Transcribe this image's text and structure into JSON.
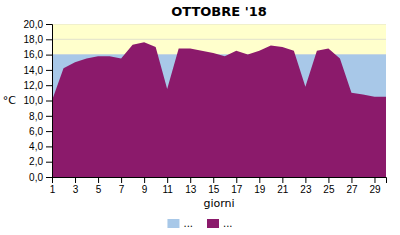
{
  "chart_data": {
    "type": "area",
    "title": "OTTOBRE '18",
    "x_label": "giorni",
    "y_label": "°C",
    "x": [
      1,
      2,
      3,
      4,
      5,
      6,
      7,
      8,
      9,
      10,
      11,
      12,
      13,
      14,
      15,
      16,
      17,
      18,
      19,
      20,
      21,
      22,
      23,
      24,
      25,
      26,
      27,
      28,
      29,
      30
    ],
    "series": [
      {
        "name": "...",
        "color": "#A8C8E8",
        "values": [
          16.0,
          16.0,
          16.0,
          16.0,
          16.0,
          16.0,
          16.0,
          16.0,
          16.0,
          16.0,
          16.0,
          16.0,
          16.0,
          16.0,
          16.0,
          16.0,
          16.0,
          16.0,
          16.0,
          16.0,
          16.0,
          16.0,
          16.0,
          16.0,
          16.0,
          16.0,
          16.0,
          16.0,
          16.0,
          16.0
        ]
      },
      {
        "name": "...",
        "color": "#8B1A6B",
        "values": [
          10.0,
          14.2,
          15.0,
          15.5,
          15.8,
          15.8,
          15.5,
          17.3,
          17.6,
          17.0,
          11.5,
          16.8,
          16.8,
          16.5,
          16.2,
          15.8,
          16.5,
          16.0,
          16.5,
          17.2,
          17.0,
          16.5,
          11.8,
          16.5,
          16.8,
          15.5,
          11.0,
          10.8,
          10.5,
          10.5
        ]
      }
    ],
    "bands": [
      {
        "from": 16.0,
        "to": 20.0,
        "color": "#FFFFCC"
      }
    ],
    "xlim": [
      1,
      30
    ],
    "xticks": [
      1,
      3,
      5,
      7,
      9,
      11,
      13,
      15,
      17,
      19,
      21,
      23,
      25,
      27,
      29
    ],
    "ylim": [
      0.0,
      20.0
    ],
    "yticks": [
      {
        "value": 0.0,
        "label": "0,0"
      },
      {
        "value": 2.0,
        "label": "2,0"
      },
      {
        "value": 4.0,
        "label": "4,0"
      },
      {
        "value": 6.0,
        "label": "6,0"
      },
      {
        "value": 8.0,
        "label": "8,0"
      },
      {
        "value": 10.0,
        "label": "10,0"
      },
      {
        "value": 12.0,
        "label": "12,0"
      },
      {
        "value": 14.0,
        "label": "14,0"
      },
      {
        "value": 16.0,
        "label": "16,0"
      },
      {
        "value": 18.0,
        "label": "18,0"
      },
      {
        "value": 20.0,
        "label": "20,0"
      }
    ],
    "grid": true,
    "legend": "bottom"
  }
}
